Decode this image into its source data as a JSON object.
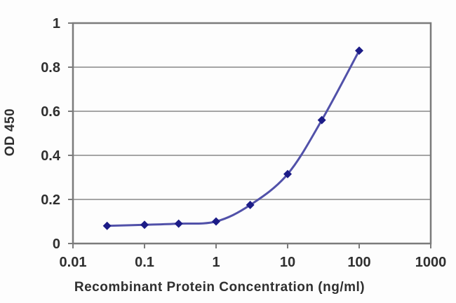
{
  "chart_data": {
    "type": "line",
    "title": "",
    "xlabel": "Recombinant Protein Concentration (ng/ml)",
    "ylabel": "OD 450",
    "x_scale": "log",
    "x": [
      0.03,
      0.1,
      0.3,
      1,
      3,
      10,
      30,
      100
    ],
    "y": [
      0.08,
      0.085,
      0.09,
      0.1,
      0.175,
      0.315,
      0.56,
      0.875
    ],
    "xlim": [
      0.01,
      1000
    ],
    "ylim": [
      0,
      1
    ],
    "xticks": {
      "values": [
        0.01,
        0.1,
        1,
        10,
        100,
        1000
      ],
      "labels": [
        "0.01",
        "0.1",
        "1",
        "10",
        "100",
        "1000"
      ]
    },
    "yticks": {
      "values": [
        0,
        0.2,
        0.4,
        0.6,
        0.8,
        1
      ],
      "labels": [
        "0",
        "0.2",
        "0.4",
        "0.6",
        "0.8",
        "1"
      ]
    },
    "grid": "horizontal",
    "legend": "none",
    "marker": "diamond",
    "line_smooth": true,
    "colors": {
      "line": "#5151a9",
      "marker": "#1c1c87",
      "grid": "#a5a5a5",
      "frame": "#7b7b7b",
      "text": "#2f2f2f",
      "background": "#fdfdfd"
    }
  }
}
